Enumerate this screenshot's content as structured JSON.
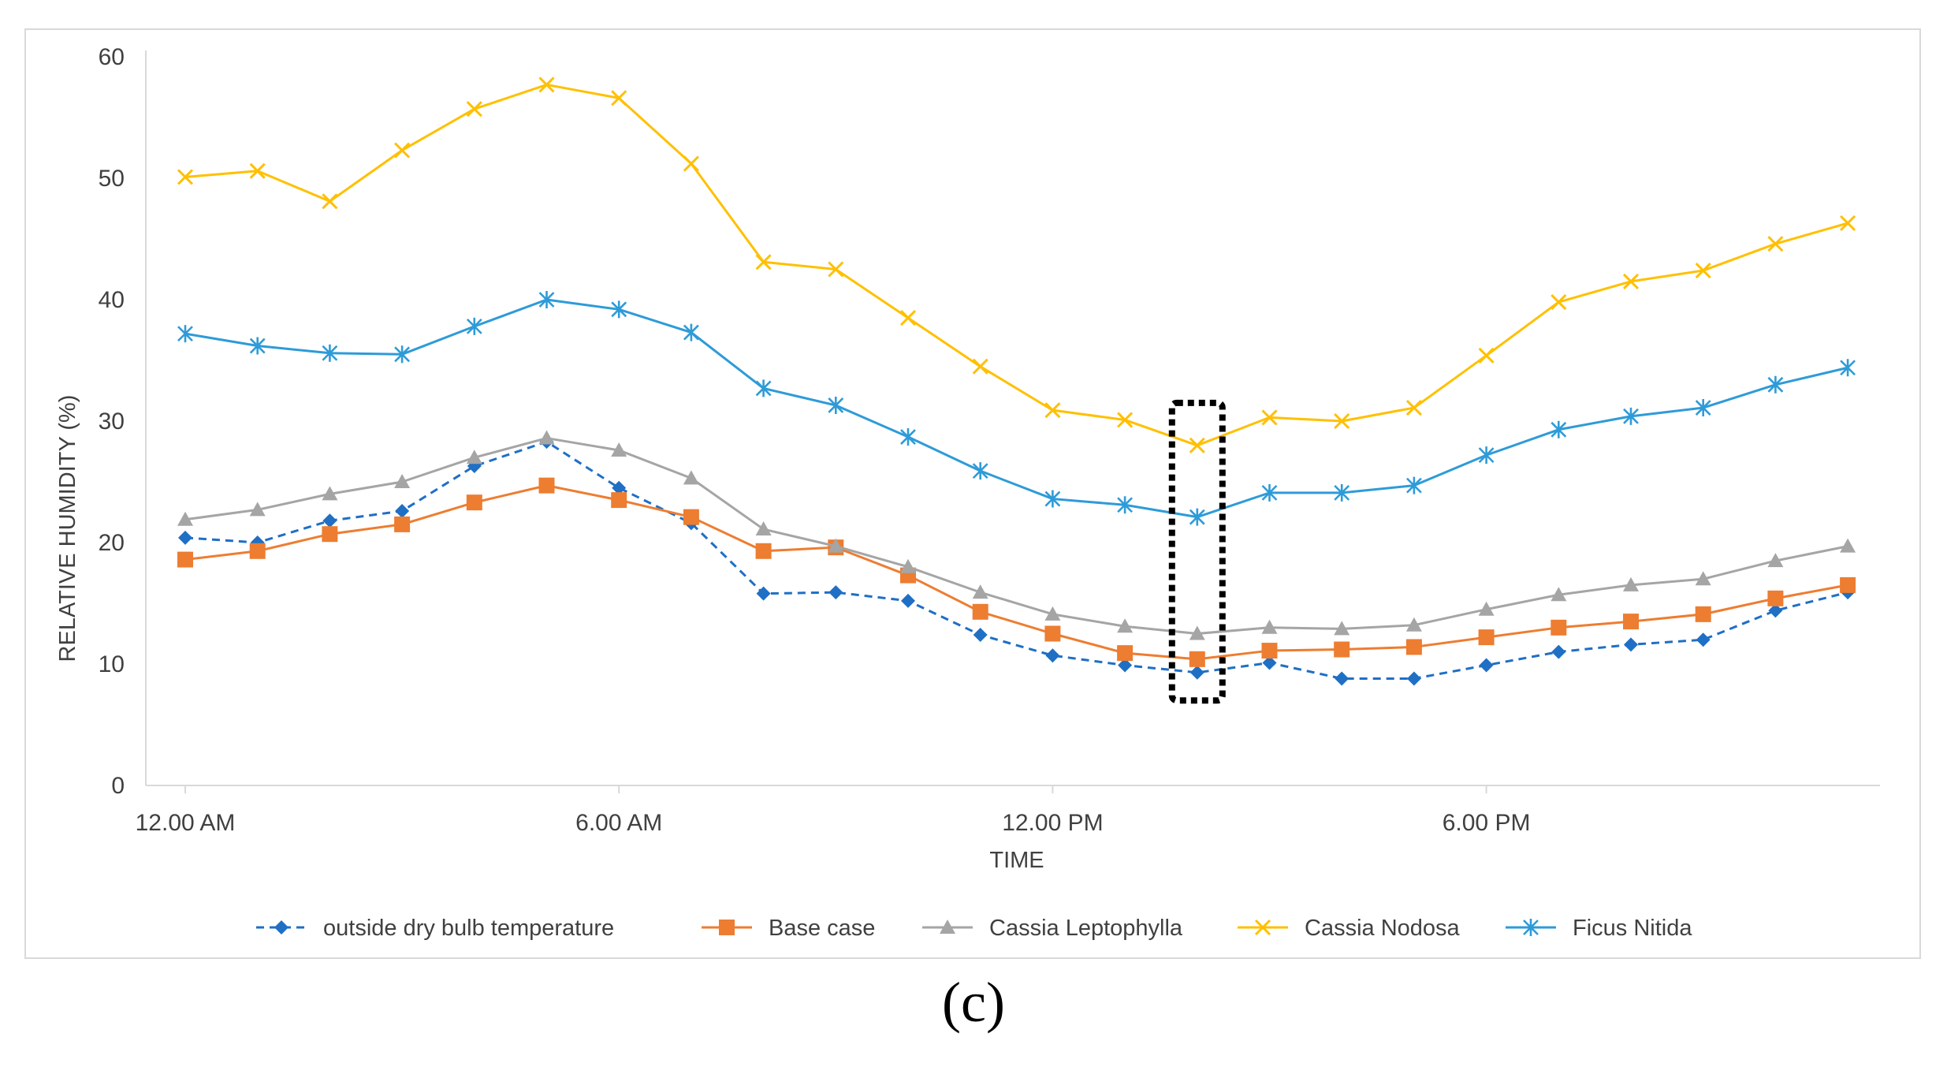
{
  "chart_data": {
    "type": "line",
    "title": "",
    "xlabel": "TIME",
    "ylabel": "RELATIVE HUMIDITY (%)",
    "ylim": [
      0,
      60
    ],
    "yticks": [
      "0",
      "10",
      "20",
      "30",
      "40",
      "50",
      "60"
    ],
    "xticks": [
      {
        "hour": 0,
        "label": "12.00 AM"
      },
      {
        "hour": 6,
        "label": "6.00 AM"
      },
      {
        "hour": 12,
        "label": "12.00 PM"
      },
      {
        "hour": 18,
        "label": "6.00 PM"
      }
    ],
    "x": [
      0,
      1,
      2,
      3,
      4,
      5,
      6,
      7,
      8,
      9,
      10,
      11,
      12,
      13,
      14,
      15,
      16,
      17,
      18,
      19,
      20,
      21,
      22,
      23,
      24
    ],
    "series": [
      {
        "name": "outside dry bulb temperature",
        "color": "#1F6FC5",
        "marker": "diamond",
        "dashed": true,
        "values": [
          20.4,
          20,
          21.8,
          22.6,
          26.3,
          28.3,
          24.5,
          21.6,
          15.8,
          15.9,
          15.2,
          12.4,
          10.7,
          9.9,
          9.3,
          10.1,
          8.8,
          8.8,
          9.9,
          11,
          11.6,
          12,
          14.4,
          15.9,
          null
        ]
      },
      {
        "name": "Base case",
        "color": "#ED7D31",
        "marker": "square",
        "dashed": false,
        "values": [
          18.6,
          19.3,
          20.7,
          21.5,
          23.3,
          24.7,
          23.5,
          22.1,
          19.3,
          19.6,
          17.3,
          14.3,
          12.5,
          10.9,
          10.4,
          11.1,
          11.2,
          11.4,
          12.2,
          13,
          13.5,
          14.1,
          15.4,
          16.5,
          null
        ]
      },
      {
        "name": "Cassia Leptophylla",
        "color": "#A5A5A5",
        "marker": "triangle",
        "dashed": false,
        "values": [
          21.9,
          22.7,
          24,
          25,
          27,
          28.6,
          27.6,
          25.3,
          21.1,
          19.7,
          18,
          15.9,
          14.1,
          13.1,
          12.5,
          13,
          12.9,
          13.2,
          14.5,
          15.7,
          16.5,
          17,
          18.5,
          19.7,
          null
        ]
      },
      {
        "name": "Cassia Nodosa",
        "color": "#FFC000",
        "marker": "x",
        "dashed": false,
        "values": [
          50.1,
          50.6,
          48.1,
          52.3,
          55.7,
          57.7,
          56.6,
          51.2,
          43.1,
          42.5,
          38.5,
          34.5,
          30.9,
          30.1,
          28,
          30.3,
          30,
          31.1,
          35.4,
          39.8,
          41.5,
          42.4,
          44.6,
          46.3,
          null
        ]
      },
      {
        "name": "Ficus Nitida",
        "color": "#2E9BD8",
        "marker": "star",
        "dashed": false,
        "values": [
          37.2,
          36.2,
          35.6,
          35.5,
          37.8,
          40,
          39.2,
          37.3,
          32.7,
          31.3,
          28.7,
          25.9,
          23.6,
          23.1,
          22.1,
          24.1,
          24.1,
          24.7,
          27.2,
          29.3,
          30.4,
          31.1,
          33,
          34.4,
          null
        ]
      }
    ],
    "highlight_box": {
      "hour": 14
    },
    "legend_position": "bottom"
  },
  "caption": "(c)"
}
